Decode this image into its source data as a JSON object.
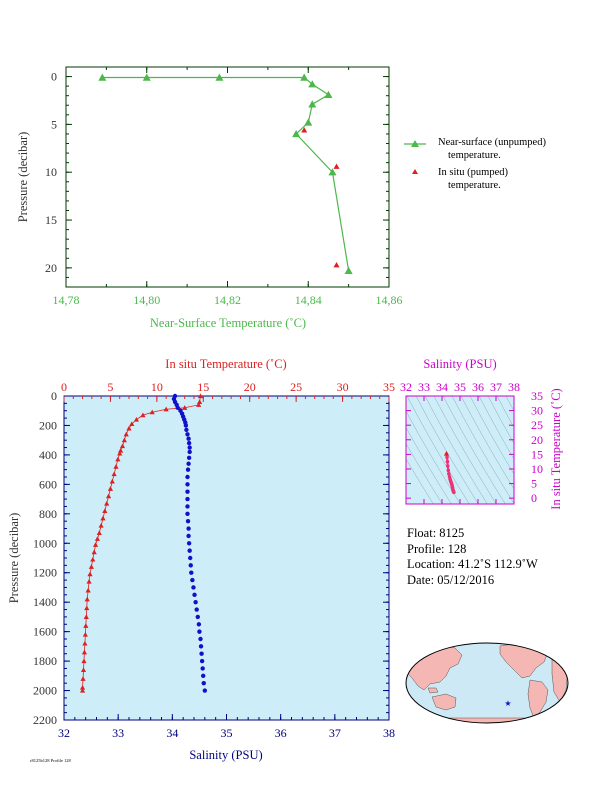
{
  "chart_data": [
    {
      "type": "line",
      "xlabel": "Near-Surface Temperature (˚C)",
      "ylabel": "Pressure (decibar)",
      "xlim": [
        14.78,
        14.86
      ],
      "ylim": [
        22,
        -1
      ],
      "xticks": [
        "14,78",
        "14,80",
        "14,82",
        "14,84",
        "14,86"
      ],
      "yticks": [
        "0",
        "5",
        "10",
        "15",
        "20"
      ],
      "series": [
        {
          "name": "Near-surface (unpumped) temperature.",
          "color": "#4cb84c",
          "points": [
            [
              14.789,
              0.1
            ],
            [
              14.8,
              0.1
            ],
            [
              14.818,
              0.1
            ],
            [
              14.839,
              0.1
            ],
            [
              14.841,
              0.8
            ],
            [
              14.845,
              1.9
            ],
            [
              14.841,
              2.9
            ],
            [
              14.84,
              4.8
            ],
            [
              14.837,
              6.0
            ],
            [
              14.846,
              10.0
            ],
            [
              14.85,
              20.3
            ]
          ]
        },
        {
          "name": "In situ (pumped) temperature.",
          "color": "#dd2020",
          "points": [
            [
              14.839,
              5.6
            ],
            [
              14.847,
              9.4
            ],
            [
              14.847,
              19.7
            ]
          ]
        }
      ],
      "legend": [
        {
          "line1": "Near-surface (unpumped)",
          "line2": "temperature."
        },
        {
          "line1": "In situ (pumped)",
          "line2": "temperature."
        }
      ]
    },
    {
      "type": "scatter",
      "title_top": "In situ Temperature (˚C)",
      "xlabel": "Salinity (PSU)",
      "ylabel": "Pressure (decibar)",
      "top_xlim": [
        0,
        35
      ],
      "top_ticks": [
        "0",
        "5",
        "10",
        "15",
        "20",
        "25",
        "30",
        "35"
      ],
      "xlim": [
        32,
        38
      ],
      "xticks": [
        "32",
        "33",
        "34",
        "35",
        "36",
        "37",
        "38"
      ],
      "ylim": [
        2200,
        0
      ],
      "yticks": [
        "0",
        "200",
        "400",
        "600",
        "800",
        "1000",
        "1200",
        "1400",
        "1600",
        "1800",
        "2000",
        "2200"
      ],
      "temperature_profile": [
        [
          14.7,
          0
        ],
        [
          14.6,
          40
        ],
        [
          14.5,
          60
        ],
        [
          13,
          80
        ],
        [
          11,
          90
        ],
        [
          9.5,
          110
        ],
        [
          8.5,
          130
        ],
        [
          7.8,
          160
        ],
        [
          7.3,
          190
        ],
        [
          7,
          220
        ],
        [
          6.7,
          260
        ],
        [
          6.5,
          300
        ],
        [
          6.3,
          340
        ],
        [
          6.1,
          370
        ],
        [
          6,
          390
        ],
        [
          5.8,
          430
        ],
        [
          5.6,
          480
        ],
        [
          5.4,
          530
        ],
        [
          5.2,
          580
        ],
        [
          5,
          630
        ],
        [
          4.8,
          680
        ],
        [
          4.6,
          730
        ],
        [
          4.4,
          780
        ],
        [
          4.2,
          830
        ],
        [
          4,
          880
        ],
        [
          3.8,
          930
        ],
        [
          3.6,
          970
        ],
        [
          3.4,
          1010
        ],
        [
          3.25,
          1060
        ],
        [
          3.1,
          1110
        ],
        [
          2.95,
          1160
        ],
        [
          2.8,
          1210
        ],
        [
          2.7,
          1260
        ],
        [
          2.6,
          1320
        ],
        [
          2.5,
          1380
        ],
        [
          2.45,
          1440
        ],
        [
          2.4,
          1500
        ],
        [
          2.35,
          1560
        ],
        [
          2.3,
          1620
        ],
        [
          2.25,
          1680
        ],
        [
          2.2,
          1740
        ],
        [
          2.15,
          1800
        ],
        [
          2.1,
          1860
        ],
        [
          2.05,
          1920
        ],
        [
          2,
          1980
        ],
        [
          2,
          2000
        ]
      ],
      "salinity_profile": [
        [
          34.05,
          0
        ],
        [
          34.03,
          20
        ],
        [
          34.05,
          40
        ],
        [
          34.08,
          60
        ],
        [
          34.1,
          80
        ],
        [
          34.15,
          100
        ],
        [
          34.18,
          120
        ],
        [
          34.2,
          140
        ],
        [
          34.22,
          160
        ],
        [
          34.24,
          180
        ],
        [
          34.25,
          200
        ],
        [
          34.26,
          230
        ],
        [
          34.28,
          260
        ],
        [
          34.3,
          290
        ],
        [
          34.31,
          320
        ],
        [
          34.32,
          350
        ],
        [
          34.32,
          380
        ],
        [
          34.31,
          420
        ],
        [
          34.3,
          460
        ],
        [
          34.29,
          500
        ],
        [
          34.28,
          550
        ],
        [
          34.28,
          600
        ],
        [
          34.28,
          650
        ],
        [
          34.28,
          700
        ],
        [
          34.28,
          750
        ],
        [
          34.28,
          800
        ],
        [
          34.29,
          850
        ],
        [
          34.3,
          900
        ],
        [
          34.3,
          950
        ],
        [
          34.31,
          1000
        ],
        [
          34.32,
          1050
        ],
        [
          34.33,
          1100
        ],
        [
          34.34,
          1150
        ],
        [
          34.35,
          1200
        ],
        [
          34.37,
          1250
        ],
        [
          34.39,
          1300
        ],
        [
          34.41,
          1350
        ],
        [
          34.43,
          1400
        ],
        [
          34.45,
          1450
        ],
        [
          34.47,
          1500
        ],
        [
          34.49,
          1550
        ],
        [
          34.5,
          1600
        ],
        [
          34.52,
          1650
        ],
        [
          34.53,
          1700
        ],
        [
          34.54,
          1750
        ],
        [
          34.55,
          1800
        ],
        [
          34.56,
          1850
        ],
        [
          34.57,
          1900
        ],
        [
          34.58,
          1950
        ],
        [
          34.6,
          2000
        ]
      ]
    },
    {
      "type": "scatter",
      "title_top": "Salinity (PSU)",
      "ylabel": "In situ Temperature (˚C)",
      "xlim": [
        32,
        38
      ],
      "xticks": [
        "32",
        "33",
        "34",
        "35",
        "36",
        "37",
        "38"
      ],
      "ylim": [
        -2,
        35
      ],
      "yticks": [
        "0",
        "5",
        "10",
        "15",
        "20",
        "25",
        "30",
        "35"
      ],
      "ts_points": [
        [
          34.25,
          15.3
        ],
        [
          34.28,
          14
        ],
        [
          34.3,
          12.5
        ],
        [
          34.32,
          11
        ],
        [
          34.35,
          9.5
        ],
        [
          34.38,
          8.3
        ],
        [
          34.42,
          7.3
        ],
        [
          34.45,
          6.5
        ],
        [
          34.48,
          5.8
        ],
        [
          34.52,
          5.2
        ],
        [
          34.55,
          4.6
        ],
        [
          34.57,
          4.0
        ],
        [
          34.59,
          3.5
        ],
        [
          34.6,
          3.0
        ],
        [
          34.62,
          2.6
        ],
        [
          34.64,
          2.3
        ],
        [
          34.66,
          2.0
        ]
      ]
    }
  ],
  "info": {
    "float": "Float:  8125",
    "profile": "Profile:  128",
    "location": "Location:  41.2˚S  112.9˚W",
    "date": "Date:  05/12/2016"
  },
  "map": {
    "marker_label": "float position star",
    "land_color": "#f4b7b3",
    "ocean_color": "#cde9f5"
  },
  "footer_text": "r8125b128 Profile 128"
}
